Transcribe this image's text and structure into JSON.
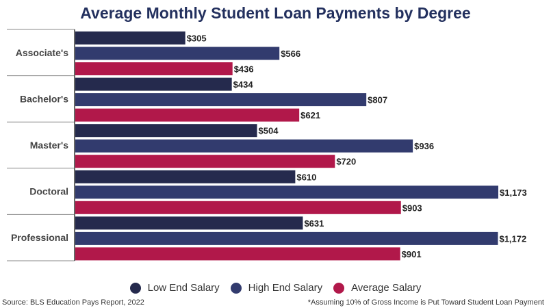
{
  "chart_data": {
    "type": "bar",
    "orientation": "horizontal",
    "title": "Average Monthly Student Loan Payments by Degree",
    "categories": [
      "Associate's",
      "Bachelor's",
      "Master's",
      "Doctoral",
      "Professional"
    ],
    "series": [
      {
        "name": "Low End Salary",
        "color": "#252a4d",
        "values": [
          305,
          434,
          504,
          610,
          631
        ],
        "labels": [
          "$305",
          "$434",
          "$504",
          "$610",
          "$631"
        ]
      },
      {
        "name": "High End Salary",
        "color": "#323b6e",
        "values": [
          566,
          807,
          936,
          1173,
          1172
        ],
        "labels": [
          "$566",
          "$807",
          "$936",
          "$1,173",
          "$1,172"
        ]
      },
      {
        "name": "Average Salary",
        "color": "#b1184a",
        "values": [
          436,
          621,
          720,
          903,
          901
        ],
        "labels": [
          "$436",
          "$621",
          "$720",
          "$903",
          "$901"
        ]
      }
    ],
    "xlim": [
      0,
      1173
    ],
    "legend_position": "bottom-center",
    "grid": false
  },
  "footer": {
    "source": "Source: BLS Education Pays Report, 2022",
    "note": "*Assuming 10% of Gross Income is Put Toward Student Loan Payment"
  }
}
